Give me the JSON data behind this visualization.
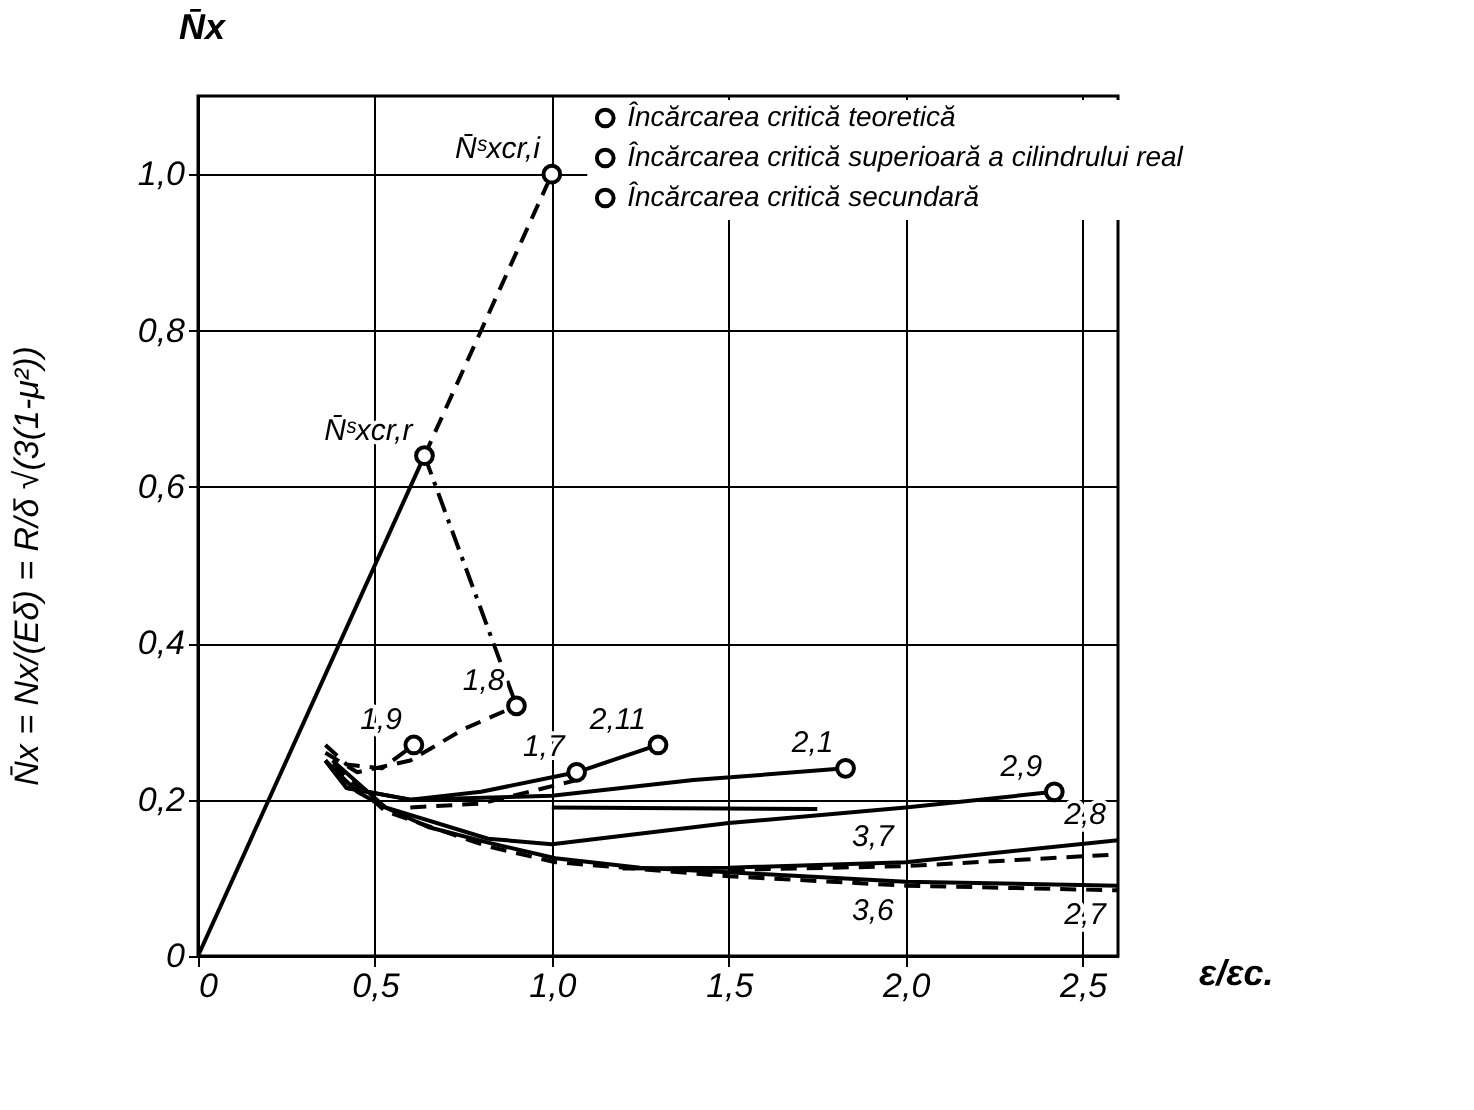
{
  "chart_data": {
    "type": "line",
    "ylabel": "N̄x",
    "xlabel": "ε/εc.",
    "xlim": [
      0,
      2.6
    ],
    "ylim": [
      0,
      1.1
    ],
    "xticks": [
      {
        "value": 0,
        "label": "0"
      },
      {
        "value": 0.5,
        "label": "0,5"
      },
      {
        "value": 1.0,
        "label": "1,0"
      },
      {
        "value": 1.5,
        "label": "1,5"
      },
      {
        "value": 2.0,
        "label": "2,0"
      },
      {
        "value": 2.5,
        "label": "2,5"
      }
    ],
    "yticks": [
      {
        "value": 0,
        "label": "0"
      },
      {
        "value": 0.2,
        "label": "0,2"
      },
      {
        "value": 0.4,
        "label": "0,4"
      },
      {
        "value": 0.6,
        "label": "0,6"
      },
      {
        "value": 0.8,
        "label": "0,8"
      },
      {
        "value": 1.0,
        "label": "1,0"
      }
    ],
    "grid": true,
    "legend": "top right",
    "series": [
      {
        "color": "#000000",
        "line_style": "solid",
        "x": [
          0,
          0.64
        ],
        "values": [
          0,
          0.64
        ]
      },
      {
        "color": "#000000",
        "line_style": "dashed",
        "x": [
          0.64,
          1.0
        ],
        "values": [
          0.64,
          1.0
        ]
      },
      {
        "color": "#000000",
        "line_style": "dotted",
        "x": [
          0.64,
          0.9
        ],
        "values": [
          0.64,
          0.32
        ]
      },
      {
        "color": "#000000",
        "line_style": "solid",
        "x": [
          0.36,
          0.45,
          0.53,
          0.65,
          0.82,
          1.01,
          1.25,
          1.5,
          2.0,
          2.6
        ],
        "values": [
          0.25,
          0.21,
          0.19,
          0.165,
          0.145,
          0.125,
          0.113,
          0.107,
          0.095,
          0.09
        ]
      },
      {
        "color": "#000000",
        "line_style": "dashed",
        "x": [
          0.38,
          0.53,
          0.82,
          1.01,
          1.5,
          2.0,
          2.6
        ],
        "values": [
          0.245,
          0.185,
          0.14,
          0.12,
          0.102,
          0.09,
          0.084
        ]
      },
      {
        "color": "#000000",
        "line_style": "solid",
        "x": [
          1.2,
          1.5,
          2.0,
          2.6
        ],
        "values": [
          0.112,
          0.113,
          0.12,
          0.148
        ]
      },
      {
        "color": "#000000",
        "line_style": "dashed",
        "x": [
          1.5,
          2.0,
          2.6
        ],
        "values": [
          0.11,
          0.115,
          0.13
        ]
      },
      {
        "color": "#000000",
        "line_style": "solid",
        "x": [
          0.38,
          0.53,
          0.82,
          1.0,
          1.5,
          2.0,
          2.42
        ],
        "values": [
          0.25,
          0.19,
          0.15,
          0.143,
          0.17,
          0.19,
          0.21
        ]
      },
      {
        "color": "#000000",
        "line_style": "solid",
        "x": [
          0.36,
          0.42,
          0.6,
          1.0,
          1.4,
          1.83
        ],
        "values": [
          0.25,
          0.215,
          0.2,
          0.205,
          0.225,
          0.24
        ]
      },
      {
        "color": "#000000",
        "line_style": "solid",
        "x": [
          1.0,
          1.75
        ],
        "values": [
          0.19,
          0.188
        ]
      },
      {
        "color": "#000000",
        "line_style": "solid",
        "x": [
          0.36,
          0.42,
          0.6,
          0.8,
          1.07,
          1.3
        ],
        "values": [
          0.25,
          0.215,
          0.2,
          0.21,
          0.235,
          0.27
        ]
      },
      {
        "color": "#000000",
        "line_style": "dashed",
        "x": [
          0.6,
          0.8,
          1.07
        ],
        "values": [
          0.19,
          0.195,
          0.225
        ]
      },
      {
        "color": "#000000",
        "line_style": "dashed",
        "x": [
          0.36,
          0.42,
          0.52,
          0.61
        ],
        "values": [
          0.27,
          0.245,
          0.24,
          0.27
        ]
      },
      {
        "color": "#000000",
        "line_style": "dashed",
        "x": [
          0.36,
          0.45,
          0.6,
          0.75,
          0.9
        ],
        "values": [
          0.26,
          0.235,
          0.25,
          0.29,
          0.32
        ]
      },
      {
        "type": "scatter",
        "name": "Încărcarea critică teoretică",
        "color": "#000000",
        "marker": "circle",
        "x": [
          1.0
        ],
        "values": [
          1.0
        ]
      },
      {
        "type": "scatter",
        "name": "Încărcarea critică superioară a cilindrului real",
        "color": "#000000",
        "marker": "circle",
        "x": [
          0.64
        ],
        "values": [
          0.64
        ]
      },
      {
        "type": "scatter",
        "name": "Încărcarea critică secundară",
        "color": "#000000",
        "marker": "circle",
        "x": [
          0.61,
          0.9,
          1.07,
          1.3,
          1.83,
          2.42
        ],
        "values": [
          0.27,
          0.32,
          0.235,
          0.27,
          0.24,
          0.21
        ]
      }
    ],
    "annotations": [
      "N̄x = Nx/(Eδ) = R/δ √(3(1-μ²))",
      {
        "text": "N̄ˢxcr,i",
        "x": 1.0,
        "y": 1.0
      },
      {
        "text": "N̄ˢxcr,r",
        "x": 0.64,
        "y": 0.64
      },
      {
        "text": "1,9",
        "x": 0.61,
        "y": 0.27
      },
      {
        "text": "1,8",
        "x": 0.9,
        "y": 0.32
      },
      {
        "text": "1,7",
        "x": 1.07,
        "y": 0.235
      },
      {
        "text": "2,11",
        "x": 1.3,
        "y": 0.27
      },
      {
        "text": "2,1",
        "x": 1.83,
        "y": 0.24
      },
      {
        "text": "2,9",
        "x": 2.42,
        "y": 0.21
      },
      {
        "text": "3,7",
        "x": 2.0,
        "y": 0.12
      },
      {
        "text": "2,8",
        "x": 2.6,
        "y": 0.148
      },
      {
        "text": "3,6",
        "x": 2.0,
        "y": 0.09
      },
      {
        "text": "2,7",
        "x": 2.6,
        "y": 0.084
      }
    ]
  }
}
